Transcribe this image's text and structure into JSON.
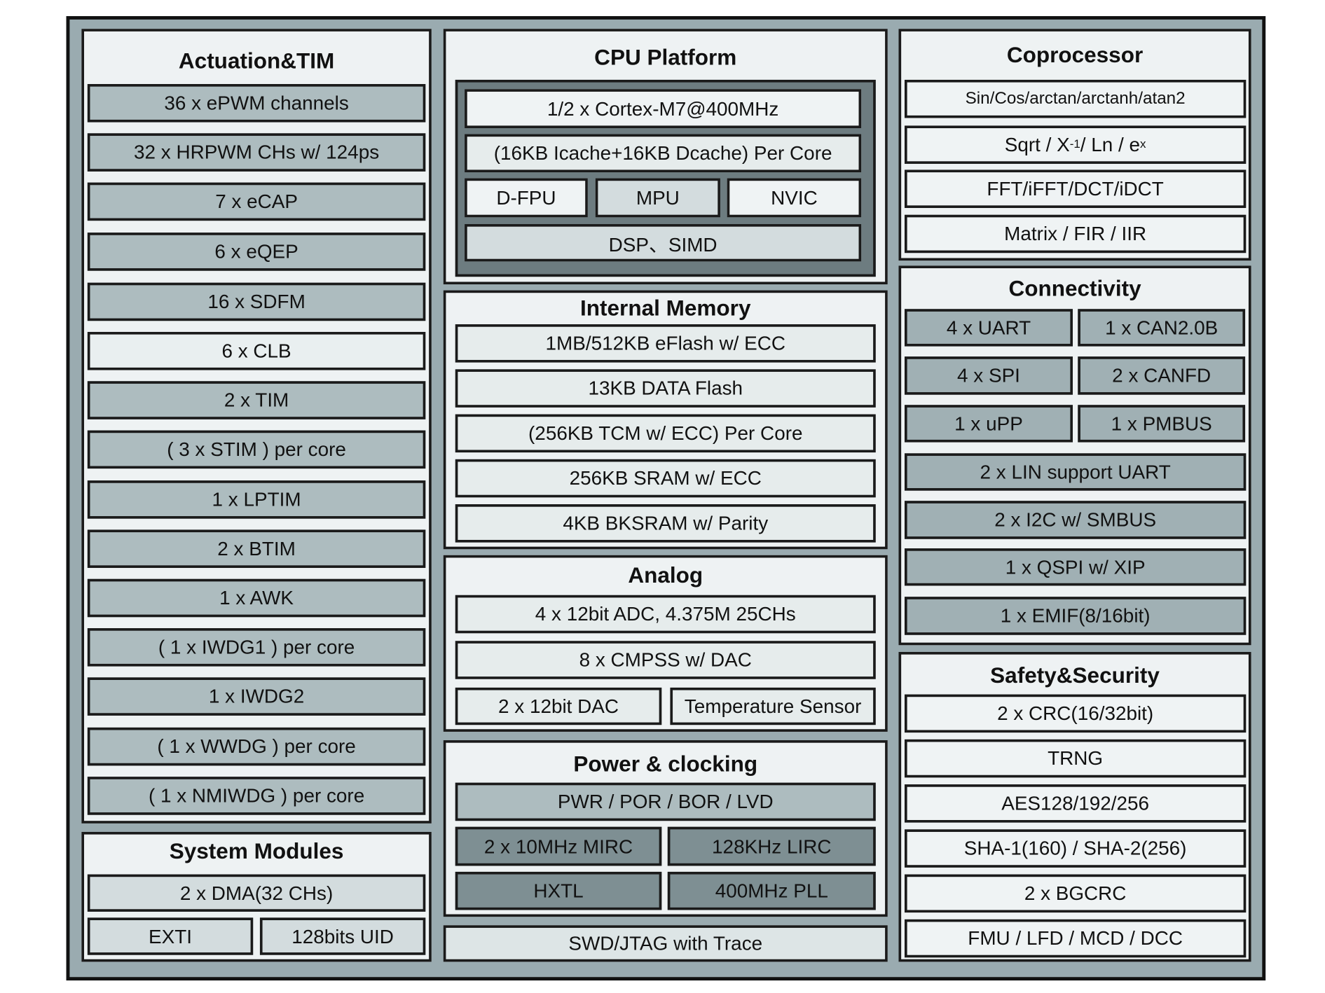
{
  "colors": {
    "outer": "#9aabb0",
    "panel": "#eef2f3",
    "cpu_core_block": "#6d7c80",
    "box_mid": "#adbcbf",
    "box_dark": "#7e8f93",
    "box_light": "#dde5e6",
    "box_white": "#eff3f4"
  },
  "sections": {
    "actuation": {
      "title": "Actuation&TIM",
      "items": [
        "36 x ePWM channels",
        "32 x HRPWM CHs w/ 124ps",
        "7 x eCAP",
        "6 x eQEP",
        "16 x SDFM",
        "6 x CLB",
        "2 x TIM",
        "( 3 x STIM ) per core",
        "1 x LPTIM",
        "2 x BTIM",
        "1 x AWK",
        "( 1 x IWDG1 ) per core",
        "1 x IWDG2",
        "( 1 x WWDG ) per core",
        "( 1 x NMIWDG ) per core"
      ]
    },
    "system": {
      "title": "System Modules",
      "items": [
        "2 x DMA(32 CHs)",
        "EXTI",
        "128bits UID"
      ]
    },
    "cpu": {
      "title": "CPU Platform",
      "items": [
        "1/2 x Cortex-M7@400MHz",
        "(16KB Icache+16KB Dcache) Per Core",
        "D-FPU",
        "MPU",
        "NVIC",
        "DSP、SIMD"
      ]
    },
    "memory": {
      "title": "Internal Memory",
      "items": [
        "1MB/512KB eFlash w/ ECC",
        "13KB DATA Flash",
        "(256KB TCM w/ ECC) Per Core",
        "256KB SRAM w/ ECC",
        "4KB BKSRAM w/ Parity"
      ]
    },
    "analog": {
      "title": "Analog",
      "items": [
        "4 x 12bit ADC, 4.375M 25CHs",
        "8 x CMPSS w/ DAC",
        "2 x 12bit DAC",
        "Temperature Sensor"
      ]
    },
    "power": {
      "title": "Power & clocking",
      "items": [
        "PWR / POR / BOR / LVD",
        "2 x 10MHz MIRC",
        "128KHz LIRC",
        "HXTL",
        "400MHz PLL"
      ]
    },
    "debug": {
      "items": [
        "SWD/JTAG with Trace"
      ]
    },
    "coprocessor": {
      "title": "Coprocessor",
      "items": [
        "Sin/Cos/arctan/arctanh/atan2",
        [
          "Sqrt / X",
          "-1",
          " / Ln / e",
          "x"
        ],
        "FFT/iFFT/DCT/iDCT",
        "Matrix / FIR / IIR"
      ]
    },
    "connectivity": {
      "title": "Connectivity",
      "items": [
        "4 x UART",
        "1 x CAN2.0B",
        "4 x SPI",
        "2 x CANFD",
        "1 x uPP",
        "1 x PMBUS",
        "2 x LIN support UART",
        "2 x I2C w/ SMBUS",
        "1 x QSPI w/ XIP",
        "1 x EMIF(8/16bit)"
      ]
    },
    "safety": {
      "title": "Safety&Security",
      "items": [
        "2 x CRC(16/32bit)",
        "TRNG",
        "AES128/192/256",
        "SHA-1(160) / SHA-2(256)",
        "2 x BGCRC",
        "FMU / LFD / MCD / DCC"
      ]
    }
  }
}
